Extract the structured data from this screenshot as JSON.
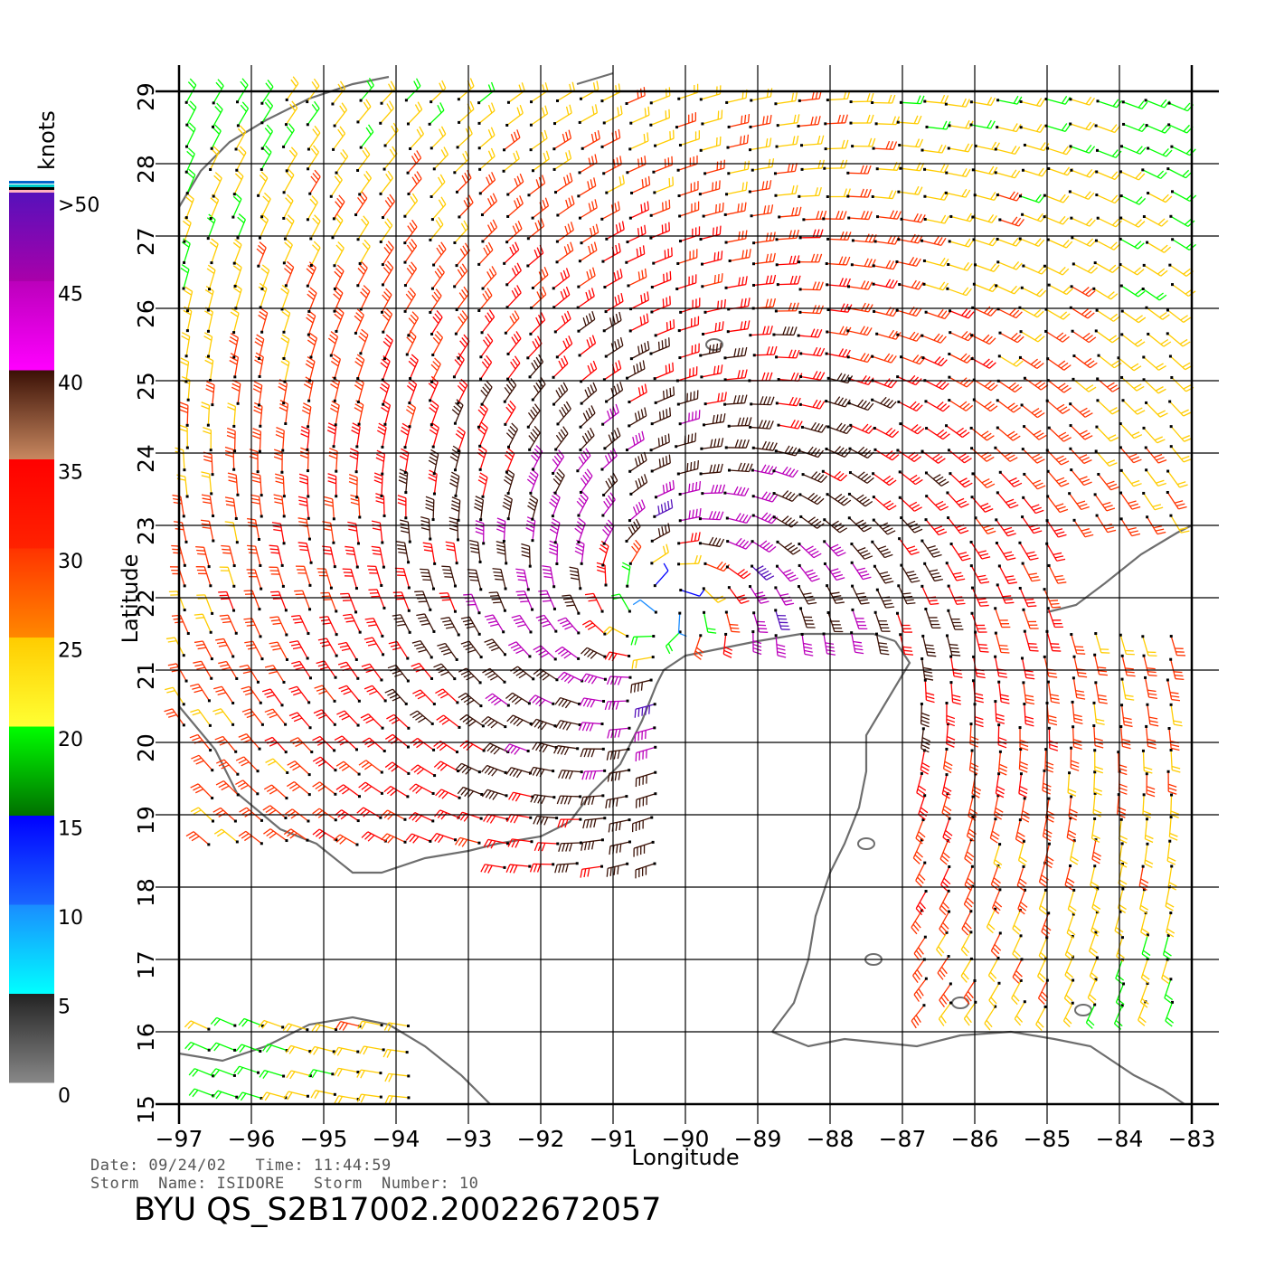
{
  "colors": {
    "grid": "#000000",
    "coast": "#6e6e6e",
    "scale": [
      {
        "from": 0,
        "to": 5,
        "top": "#222222",
        "bottom": "#888888"
      },
      {
        "from": 5,
        "to": 10,
        "top": "#1a8cff",
        "bottom": "#00ffff"
      },
      {
        "from": 10,
        "to": 15,
        "top": "#0000ff",
        "bottom": "#1a66ff"
      },
      {
        "from": 15,
        "to": 20,
        "top": "#00ff00",
        "bottom": "#007000"
      },
      {
        "from": 20,
        "to": 25,
        "top": "#ffcc00",
        "bottom": "#ffff33"
      },
      {
        "from": 25,
        "to": 30,
        "top": "#ff3300",
        "bottom": "#ff8800"
      },
      {
        "from": 30,
        "to": 35,
        "top": "#ff0000",
        "bottom": "#ff2200"
      },
      {
        "from": 35,
        "to": 40,
        "top": "#3a1005",
        "bottom": "#c88860"
      },
      {
        "from": 40,
        "to": 45,
        "top": "#bb00bb",
        "bottom": "#ff00ff"
      },
      {
        "from": 45,
        "to": 50,
        "top": "#5511bb",
        "bottom": "#aa00aa"
      }
    ]
  },
  "colorbar": {
    "unit_label": "knots",
    "labels": [
      ">50",
      "45",
      "40",
      "35",
      "30",
      "25",
      "20",
      "15",
      "10",
      "5",
      "0"
    ]
  },
  "axes": {
    "xlabel": "Longitude",
    "ylabel": "Latitude",
    "lon_ticks": [
      "−97",
      "−96",
      "−95",
      "−94",
      "−93",
      "−92",
      "−91",
      "−90",
      "−89",
      "−88",
      "−87",
      "−86",
      "−85",
      "−84",
      "−83"
    ],
    "lat_ticks": [
      "15",
      "16",
      "17",
      "18",
      "19",
      "20",
      "21",
      "22",
      "23",
      "24",
      "25",
      "26",
      "27",
      "28",
      "29"
    ],
    "lon_range": [
      -97,
      -83
    ],
    "lat_range": [
      15,
      29
    ]
  },
  "info": {
    "line1": "Date: 09/24/02   Time: 11:44:59",
    "line2": "Storm  Name: ISIDORE   Storm  Number: 10",
    "product_id": "BYU  QS_S2B17002.20022672057"
  },
  "wind": {
    "storm_center": {
      "lon": -90.3,
      "lat": 21.9
    },
    "max_speed_knots": 44
  }
}
